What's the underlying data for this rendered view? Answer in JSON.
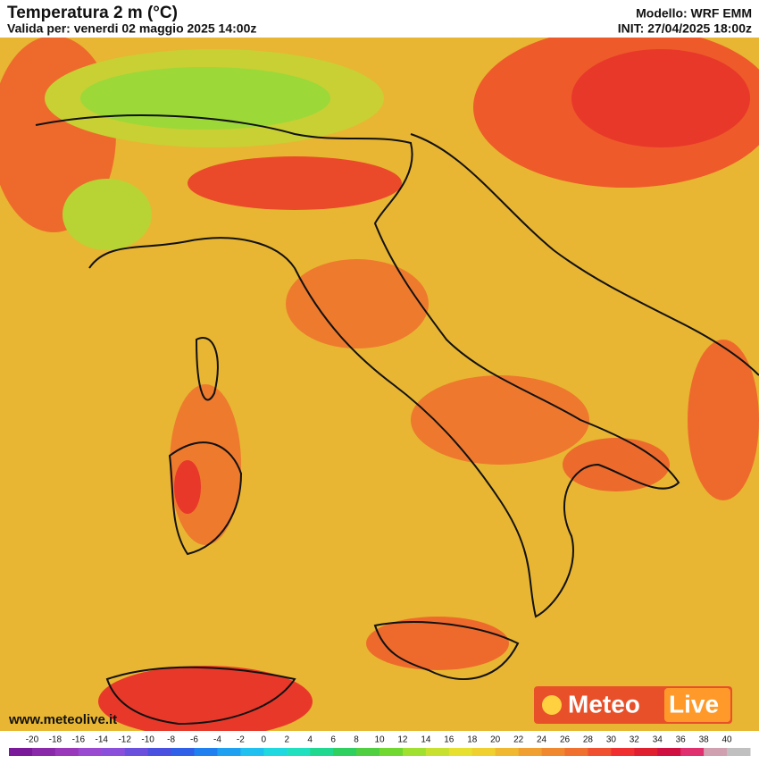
{
  "header": {
    "title": "Temperatura 2 m (°C)",
    "subtitle": "Valida per: venerdi 02 maggio 2025 14:00z",
    "model": "Modello: WRF EMM",
    "init": "INIT: 27/04/2025 18:00z"
  },
  "watermark": "www.meteolive.it",
  "logo": {
    "part1": "Meteo",
    "part2": "Live"
  },
  "colorbar": {
    "ticks": [
      -20,
      -18,
      -16,
      -14,
      -12,
      -10,
      -8,
      -6,
      -4,
      -2,
      0,
      2,
      4,
      6,
      8,
      10,
      12,
      14,
      16,
      18,
      20,
      22,
      24,
      26,
      28,
      30,
      32,
      34,
      36,
      38,
      40
    ],
    "colors": [
      "#7a1a9a",
      "#8a2aaa",
      "#9a38bc",
      "#9a4ad0",
      "#8a50dc",
      "#6a50dc",
      "#4a50e0",
      "#3060e8",
      "#2080f0",
      "#20a0f0",
      "#20c0f0",
      "#20d8e0",
      "#20e0c0",
      "#20d890",
      "#30d060",
      "#50d040",
      "#70d830",
      "#a0e030",
      "#c8e030",
      "#e8e030",
      "#f0d030",
      "#f0b830",
      "#f0a030",
      "#f08830",
      "#f07030",
      "#f05030",
      "#f03030",
      "#e02030",
      "#d01040",
      "#e03070",
      "#d0a0b0",
      "#c0c0c0"
    ]
  }
}
